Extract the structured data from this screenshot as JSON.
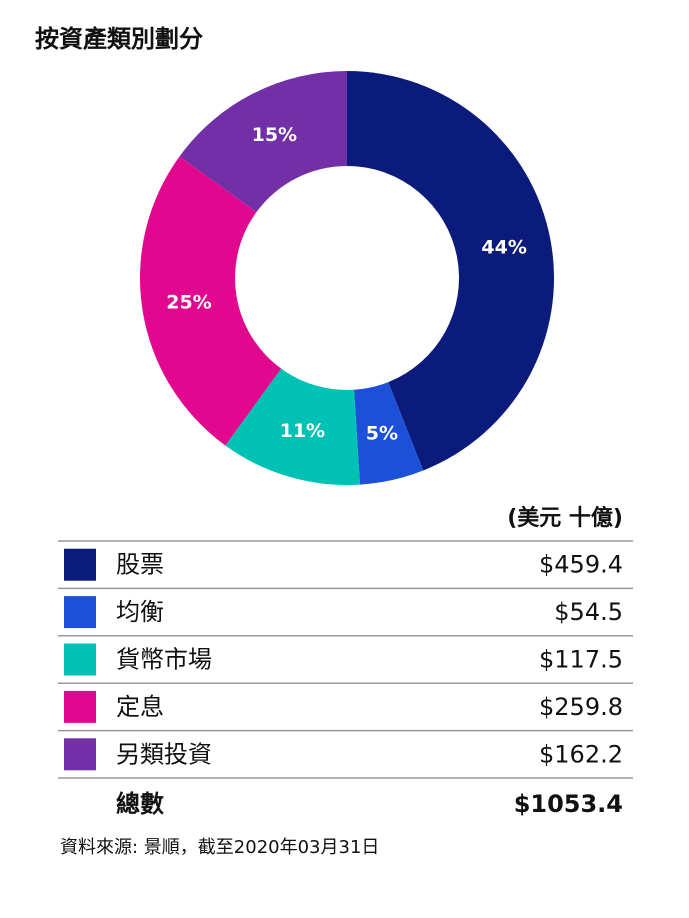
{
  "chart_data": {
    "type": "donut",
    "title": "按資產類別劃分",
    "categories": [
      "股票",
      "均衡",
      "貨幣市場",
      "定息",
      "另類投資"
    ],
    "values": [
      44,
      5,
      11,
      25,
      15
    ],
    "value_labels": [
      "44%",
      "5%",
      "11%",
      "25%",
      "15%"
    ],
    "colors": [
      "#0b1b7c",
      "#1c50d8",
      "#00c2b4",
      "#e1088f",
      "#7330a6"
    ]
  },
  "table": {
    "header": "(美元 十億)",
    "amounts": [
      "$459.4",
      "$54.5",
      "$117.5",
      "$259.8",
      "$162.2"
    ],
    "total_label": "總數",
    "total_amount": "$1053.4"
  },
  "source": "資料來源: 景順，截至2020年03月31日"
}
